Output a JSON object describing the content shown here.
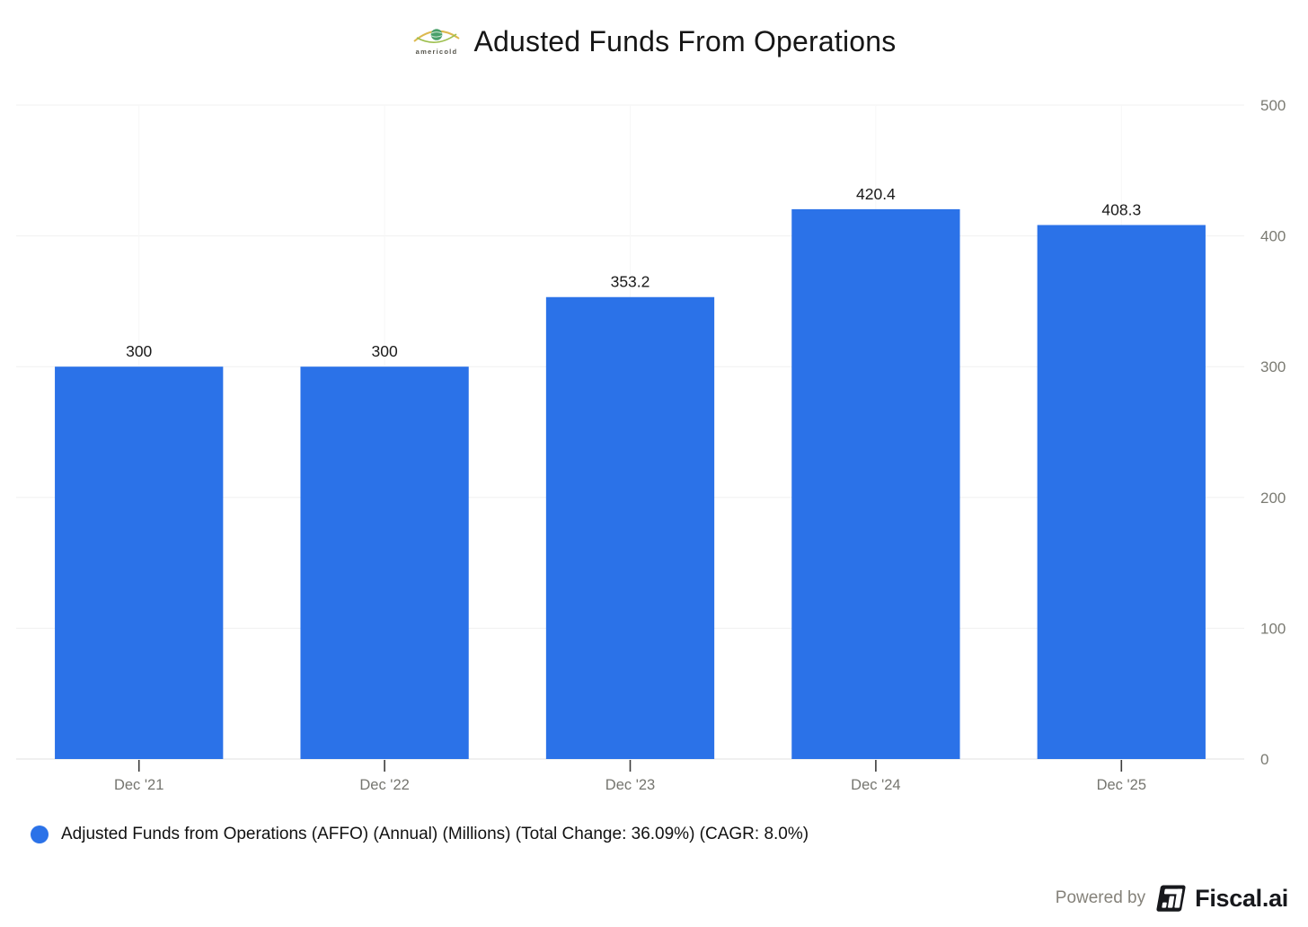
{
  "header": {
    "title": "Adusted Funds From Operations",
    "logo_text": "americold"
  },
  "chart_data": {
    "type": "bar",
    "title": "Adusted Funds From Operations",
    "categories": [
      "Dec '21",
      "Dec '22",
      "Dec '23",
      "Dec '24",
      "Dec '25"
    ],
    "values": [
      300,
      300,
      353.2,
      420.4,
      408.3
    ],
    "value_labels": [
      "300",
      "300",
      "353.2",
      "420.4",
      "408.3"
    ],
    "series_name": "Adjusted Funds from Operations (AFFO) (Annual) (Millions)",
    "xlabel": "",
    "ylabel": "",
    "ylim": [
      0,
      500
    ],
    "yticks": [
      0,
      100,
      200,
      300,
      400,
      500
    ],
    "y_axis_side": "right",
    "grid": true,
    "legend_position": "bottom-left",
    "bar_color": "#2b72e8"
  },
  "legend": {
    "label": "Adjusted Funds from Operations (AFFO) (Annual) (Millions) (Total Change: 36.09%) (CAGR: 8.0%)",
    "marker_color": "#2b72e8"
  },
  "footer": {
    "powered_by": "Powered by",
    "brand": "Fiscal.ai"
  },
  "colors": {
    "bar": "#2b72e8",
    "value_label": "#1a1a1a",
    "x_axis_label": "#75756f",
    "y_axis_label": "#7b7b73",
    "gridline": "#f0f0f0",
    "vertical_gridline": "#f7f7f7",
    "axis_line": "#e1e1e1",
    "x_tick": "#3a3a3a"
  }
}
